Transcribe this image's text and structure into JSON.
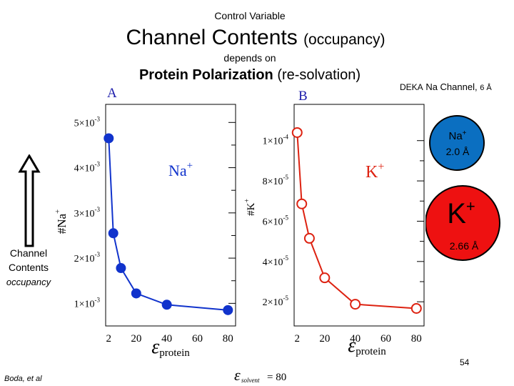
{
  "header": {
    "control_variable": "Control Variable",
    "title_main": "Channel Contents",
    "title_paren": "(occupancy)",
    "depends_on": "depends on",
    "pp_main": "Protein Polarization",
    "pp_paren": "(re-solvation)"
  },
  "left_label": {
    "line1": "Channel",
    "line2": "Contents",
    "line3": "occupancy"
  },
  "deka": {
    "prefix": "DEKA",
    "rest": "Na Channel,",
    "size": "6 Å"
  },
  "footer": {
    "author": "Boda, et al",
    "page": "54",
    "solvent_text": "= 80"
  },
  "circles": {
    "na": {
      "ion": "Na",
      "charge": "+",
      "radius": "2.0 Å",
      "color": "#0b6fc1"
    },
    "k": {
      "ion": "K",
      "charge": "+",
      "radius": "2.66 Å",
      "color": "#ee1111"
    }
  },
  "colors": {
    "na_series": "#1133cc",
    "k_series": "#dd2211",
    "arrow": "#000000"
  },
  "chart_data": [
    {
      "type": "line",
      "panel_label": "A",
      "ion_label": "Na",
      "ion_charge": "+",
      "ylabel": "#Na",
      "ylabel_sup": "+",
      "xlabel": "ε",
      "xlabel_sub": "protein",
      "x": [
        2,
        5,
        10,
        20,
        40,
        80
      ],
      "y": [
        0.00465,
        0.00255,
        0.00178,
        0.00122,
        0.00097,
        0.00085
      ],
      "xlim": [
        0,
        85
      ],
      "ylim": [
        0.0005,
        0.0054
      ],
      "x_ticks": [
        2,
        20,
        40,
        60,
        80
      ],
      "y_ticks": [
        {
          "value": 0.005,
          "mant": "5×10",
          "exp": "-3"
        },
        {
          "value": 0.004,
          "mant": "4×10",
          "exp": "-3"
        },
        {
          "value": 0.003,
          "mant": "3×10",
          "exp": "-3"
        },
        {
          "value": 0.002,
          "mant": "2×10",
          "exp": "-3"
        },
        {
          "value": 0.001,
          "mant": "1×10",
          "exp": "-3"
        }
      ],
      "marker": "filled-circle",
      "color": "#1133cc",
      "grid": false
    },
    {
      "type": "line",
      "panel_label": "B",
      "ion_label": "K",
      "ion_charge": "+",
      "ylabel": "#K",
      "ylabel_sup": "+",
      "xlabel": "ε",
      "xlabel_sub": "protein",
      "x": [
        2,
        5,
        10,
        20,
        40,
        80
      ],
      "y": [
        0.000104,
        6.86e-05,
        5.15e-05,
        3.19e-05,
        1.88e-05,
        1.67e-05
      ],
      "xlim": [
        0,
        85
      ],
      "ylim": [
        8e-06,
        0.000118
      ],
      "x_ticks": [
        2,
        20,
        40,
        60,
        80
      ],
      "y_ticks": [
        {
          "value": 0.0001,
          "mant": "1×10",
          "exp": "-4"
        },
        {
          "value": 8e-05,
          "mant": "8×10",
          "exp": "-5"
        },
        {
          "value": 6e-05,
          "mant": "6×10",
          "exp": "-5"
        },
        {
          "value": 4e-05,
          "mant": "4×10",
          "exp": "-5"
        },
        {
          "value": 2e-05,
          "mant": "2×10",
          "exp": "-5"
        }
      ],
      "marker": "open-circle",
      "color": "#dd2211",
      "grid": false
    }
  ]
}
